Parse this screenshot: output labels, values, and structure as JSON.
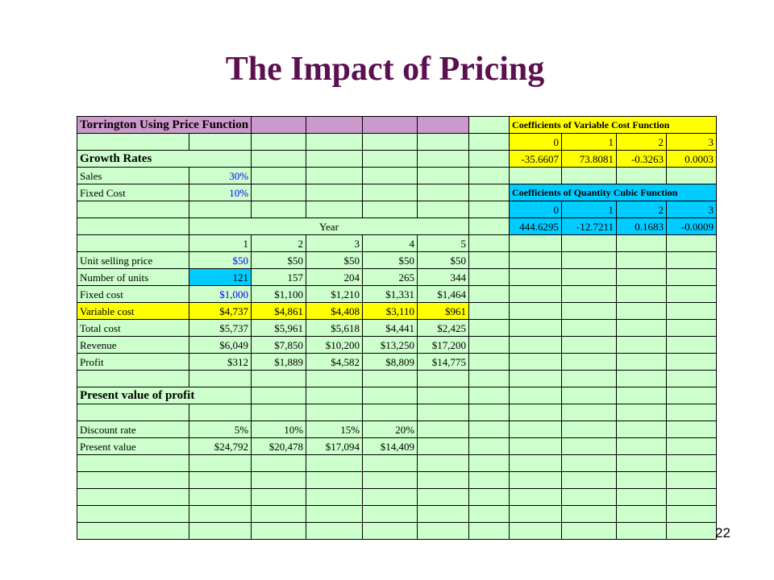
{
  "slide": {
    "title": "The Impact of Pricing",
    "page_number": "22"
  },
  "colors": {
    "title": "#5b1050",
    "cell_bg": "#ccffcc",
    "purple": "#cc99cc",
    "yellow": "#ffff00",
    "cyan": "#00ccff",
    "input_text": "#0000ff"
  },
  "sheet": {
    "title": "Torrington Using Price Function",
    "growth_rates": {
      "heading": "Growth Rates",
      "sales_label": "Sales",
      "sales_value": "30%",
      "fixed_label": "Fixed Cost",
      "fixed_value": "10%"
    },
    "year_label": "Year",
    "years": [
      "1",
      "2",
      "3",
      "4",
      "5"
    ],
    "rows": [
      {
        "label": "Unit selling price",
        "values": [
          "$50",
          "$50",
          "$50",
          "$50",
          "$50"
        ]
      },
      {
        "label": "Number of units",
        "values": [
          "121",
          "157",
          "204",
          "265",
          "344"
        ]
      },
      {
        "label": "Fixed cost",
        "values": [
          "$1,000",
          "$1,100",
          "$1,210",
          "$1,331",
          "$1,464"
        ]
      },
      {
        "label": "Variable cost",
        "values": [
          "$4,737",
          "$4,861",
          "$4,408",
          "$3,110",
          "$961"
        ]
      },
      {
        "label": "Total cost",
        "values": [
          "$5,737",
          "$5,961",
          "$5,618",
          "$4,441",
          "$2,425"
        ]
      },
      {
        "label": "Revenue",
        "values": [
          "$6,049",
          "$7,850",
          "$10,200",
          "$13,250",
          "$17,200"
        ]
      },
      {
        "label": "Profit",
        "values": [
          "$312",
          "$1,889",
          "$4,582",
          "$8,809",
          "$14,775"
        ]
      }
    ],
    "present_value": {
      "heading": "Present value of profit",
      "discount_label": "Discount rate",
      "discount_rates": [
        "5%",
        "10%",
        "15%",
        "20%"
      ],
      "pv_label": "Present value",
      "pv_values": [
        "$24,792",
        "$20,478",
        "$17,094",
        "$14,409"
      ]
    },
    "variable_cost_coefficients": {
      "title": "Coefficients of Variable Cost Function",
      "indices": [
        "0",
        "1",
        "2",
        "3"
      ],
      "values": [
        "-35.6607",
        "73.8081",
        "-0.3263",
        "0.0003"
      ]
    },
    "quantity_coefficients": {
      "title": "Coefficients of Quantity Cubic Function",
      "indices": [
        "0",
        "1",
        "2",
        "3"
      ],
      "values": [
        "444.6295",
        "-12.7211",
        "0.1683",
        "-0.0009"
      ]
    }
  }
}
